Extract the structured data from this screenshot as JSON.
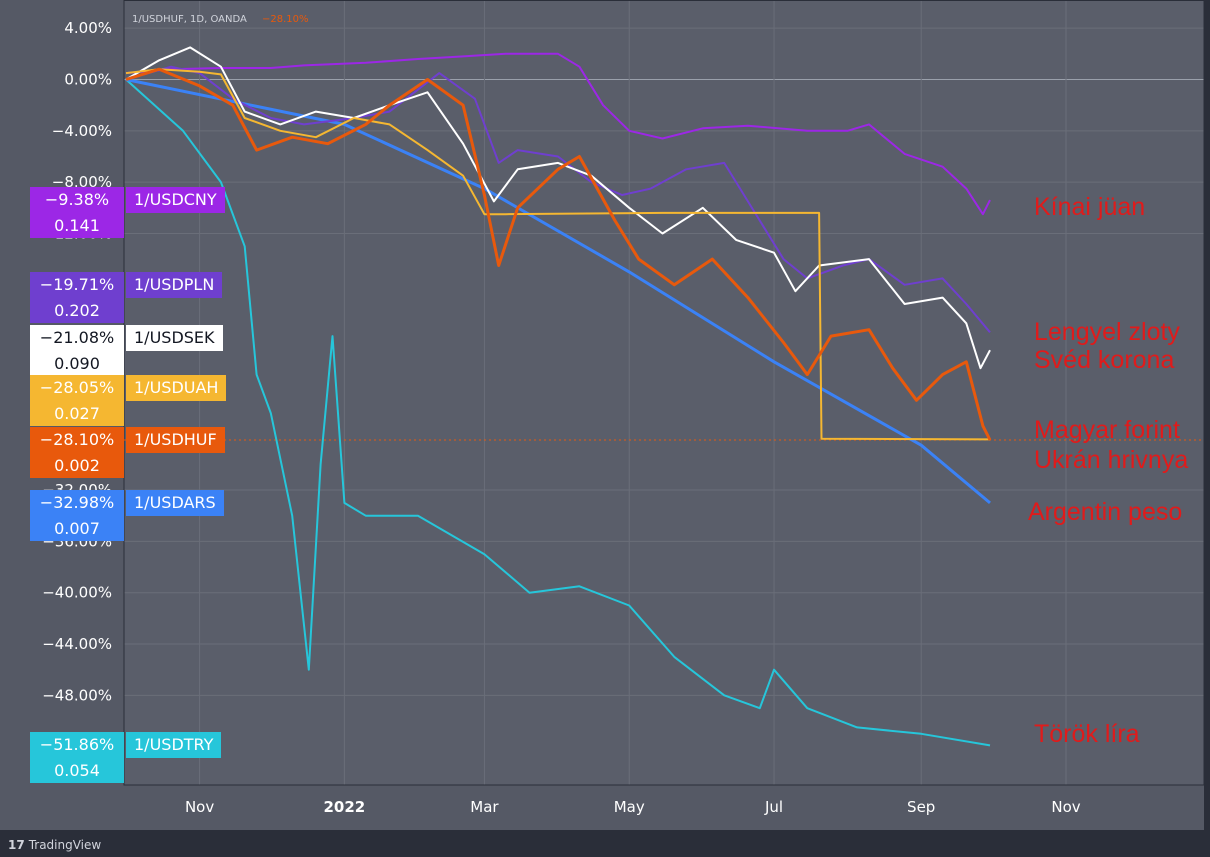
{
  "header": {
    "symbol_text": "1/USDHUF, 1D, OANDA",
    "change_text": "−28.10%"
  },
  "watermark": {
    "text": "TradingView"
  },
  "chart_data": {
    "type": "line",
    "y_unit": "percent change",
    "ylim": [
      -56,
      6
    ],
    "xlim": [
      "2021-10-01",
      "2022-11-30"
    ],
    "y_ticks": [
      "4.00%",
      "0.00%",
      "−4.00%",
      "−8.00%",
      "−12.00%",
      "−32.00%",
      "−36.00%",
      "−40.00%",
      "−44.00%",
      "−48.00%"
    ],
    "x_ticks": [
      "Nov",
      "2022",
      "Mar",
      "May",
      "Jul",
      "Sep",
      "Nov"
    ],
    "x_tick_dates": [
      "2021-11-01",
      "2022-01-01",
      "2022-03-01",
      "2022-05-01",
      "2022-07-01",
      "2022-09-01",
      "2022-11-01"
    ],
    "grid": true,
    "series": [
      {
        "name": "1/USDCNY",
        "color": "#9c27e6",
        "last_pct": "−9.38%",
        "last_value": "0.141",
        "points": [
          [
            "2021-10-01",
            0.5
          ],
          [
            "2021-10-20",
            0.8
          ],
          [
            "2021-11-10",
            0.9
          ],
          [
            "2021-12-01",
            0.9
          ],
          [
            "2021-12-15",
            1.1
          ],
          [
            "2022-01-10",
            1.3
          ],
          [
            "2022-02-01",
            1.6
          ],
          [
            "2022-02-20",
            1.8
          ],
          [
            "2022-03-10",
            2.0
          ],
          [
            "2022-04-01",
            2.0
          ],
          [
            "2022-04-10",
            1.0
          ],
          [
            "2022-04-20",
            -2.0
          ],
          [
            "2022-05-01",
            -4.0
          ],
          [
            "2022-05-15",
            -4.6
          ],
          [
            "2022-06-01",
            -3.8
          ],
          [
            "2022-06-20",
            -3.6
          ],
          [
            "2022-07-15",
            -4.0
          ],
          [
            "2022-08-01",
            -4.0
          ],
          [
            "2022-08-10",
            -3.5
          ],
          [
            "2022-08-25",
            -5.8
          ],
          [
            "2022-09-10",
            -6.8
          ],
          [
            "2022-09-20",
            -8.5
          ],
          [
            "2022-09-27",
            -10.5
          ],
          [
            "2022-09-30",
            -9.4
          ]
        ]
      },
      {
        "name": "1/USDPLN",
        "color": "#6f3fcf",
        "last_pct": "−19.71%",
        "last_value": "0.202",
        "points": [
          [
            "2021-10-01",
            0.0
          ],
          [
            "2021-10-20",
            1.0
          ],
          [
            "2021-11-01",
            0.5
          ],
          [
            "2021-11-15",
            -1.5
          ],
          [
            "2021-12-01",
            -3.0
          ],
          [
            "2021-12-15",
            -3.5
          ],
          [
            "2022-01-05",
            -3.0
          ],
          [
            "2022-01-20",
            -2.5
          ],
          [
            "2022-02-10",
            0.5
          ],
          [
            "2022-02-25",
            -1.5
          ],
          [
            "2022-03-07",
            -6.5
          ],
          [
            "2022-03-15",
            -5.5
          ],
          [
            "2022-04-01",
            -6.0
          ],
          [
            "2022-04-15",
            -8.0
          ],
          [
            "2022-04-28",
            -9.0
          ],
          [
            "2022-05-10",
            -8.5
          ],
          [
            "2022-05-25",
            -7.0
          ],
          [
            "2022-06-10",
            -6.5
          ],
          [
            "2022-06-25",
            -11.0
          ],
          [
            "2022-07-05",
            -14.0
          ],
          [
            "2022-07-15",
            -15.5
          ],
          [
            "2022-07-30",
            -14.5
          ],
          [
            "2022-08-10",
            -14.0
          ],
          [
            "2022-08-25",
            -16.0
          ],
          [
            "2022-09-10",
            -15.5
          ],
          [
            "2022-09-20",
            -17.5
          ],
          [
            "2022-09-30",
            -19.7
          ]
        ]
      },
      {
        "name": "1/USDSEK",
        "color": "#ffffff",
        "last_pct": "−21.08%",
        "last_value": "0.090",
        "points": [
          [
            "2021-10-01",
            0.0
          ],
          [
            "2021-10-15",
            1.5
          ],
          [
            "2021-10-28",
            2.5
          ],
          [
            "2021-11-10",
            1.0
          ],
          [
            "2021-11-20",
            -2.5
          ],
          [
            "2021-12-05",
            -3.5
          ],
          [
            "2021-12-20",
            -2.5
          ],
          [
            "2022-01-05",
            -3.0
          ],
          [
            "2022-01-20",
            -2.0
          ],
          [
            "2022-02-05",
            -1.0
          ],
          [
            "2022-02-20",
            -5.0
          ],
          [
            "2022-03-05",
            -9.5
          ],
          [
            "2022-03-15",
            -7.0
          ],
          [
            "2022-04-01",
            -6.5
          ],
          [
            "2022-04-15",
            -7.5
          ],
          [
            "2022-05-01",
            -10.0
          ],
          [
            "2022-05-15",
            -12.0
          ],
          [
            "2022-06-01",
            -10.0
          ],
          [
            "2022-06-15",
            -12.5
          ],
          [
            "2022-07-01",
            -13.5
          ],
          [
            "2022-07-10",
            -16.5
          ],
          [
            "2022-07-20",
            -14.5
          ],
          [
            "2022-08-10",
            -14.0
          ],
          [
            "2022-08-25",
            -17.5
          ],
          [
            "2022-09-10",
            -17.0
          ],
          [
            "2022-09-20",
            -19.0
          ],
          [
            "2022-09-26",
            -22.5
          ],
          [
            "2022-09-30",
            -21.1
          ]
        ]
      },
      {
        "name": "1/USDUAH",
        "color": "#f5b731",
        "last_pct": "−28.05%",
        "last_value": "0.027",
        "points": [
          [
            "2021-10-01",
            0.5
          ],
          [
            "2021-10-15",
            0.8
          ],
          [
            "2021-11-01",
            0.6
          ],
          [
            "2021-11-10",
            0.4
          ],
          [
            "2021-11-20",
            -3.0
          ],
          [
            "2021-12-05",
            -4.0
          ],
          [
            "2021-12-20",
            -4.5
          ],
          [
            "2022-01-05",
            -3.0
          ],
          [
            "2022-01-20",
            -3.5
          ],
          [
            "2022-02-05",
            -5.5
          ],
          [
            "2022-02-20",
            -7.5
          ],
          [
            "2022-03-01",
            -10.5
          ],
          [
            "2022-03-10",
            -10.5
          ],
          [
            "2022-05-15",
            -10.4
          ],
          [
            "2022-07-20",
            -10.4
          ],
          [
            "2022-07-21",
            -28.0
          ],
          [
            "2022-09-30",
            -28.05
          ]
        ]
      },
      {
        "name": "1/USDHUF",
        "color": "#e8590c",
        "last_pct": "−28.10%",
        "last_value": "0.002",
        "points": [
          [
            "2021-10-01",
            0.0
          ],
          [
            "2021-10-15",
            0.8
          ],
          [
            "2021-11-01",
            -0.5
          ],
          [
            "2021-11-15",
            -2.0
          ],
          [
            "2021-11-25",
            -5.5
          ],
          [
            "2021-12-10",
            -4.5
          ],
          [
            "2021-12-25",
            -5.0
          ],
          [
            "2022-01-10",
            -3.5
          ],
          [
            "2022-01-20",
            -2.0
          ],
          [
            "2022-02-05",
            0.0
          ],
          [
            "2022-02-20",
            -2.0
          ],
          [
            "2022-03-01",
            -9.0
          ],
          [
            "2022-03-07",
            -14.5
          ],
          [
            "2022-03-15",
            -10.0
          ],
          [
            "2022-04-01",
            -7.0
          ],
          [
            "2022-04-10",
            -6.0
          ],
          [
            "2022-04-25",
            -11.0
          ],
          [
            "2022-05-05",
            -14.0
          ],
          [
            "2022-05-20",
            -16.0
          ],
          [
            "2022-06-05",
            -14.0
          ],
          [
            "2022-06-20",
            -17.0
          ],
          [
            "2022-07-05",
            -20.5
          ],
          [
            "2022-07-15",
            -23.0
          ],
          [
            "2022-07-25",
            -20.0
          ],
          [
            "2022-08-10",
            -19.5
          ],
          [
            "2022-08-20",
            -22.5
          ],
          [
            "2022-08-30",
            -25.0
          ],
          [
            "2022-09-10",
            -23.0
          ],
          [
            "2022-09-20",
            -22.0
          ],
          [
            "2022-09-27",
            -27.0
          ],
          [
            "2022-09-30",
            -28.1
          ]
        ]
      },
      {
        "name": "1/USDARS",
        "color": "#3b82f6",
        "last_pct": "−32.98%",
        "last_value": "0.007",
        "points": [
          [
            "2021-10-01",
            0.0
          ],
          [
            "2022-01-01",
            -3.5
          ],
          [
            "2022-03-01",
            -8.5
          ],
          [
            "2022-05-01",
            -15.0
          ],
          [
            "2022-07-01",
            -22.0
          ],
          [
            "2022-09-01",
            -28.5
          ],
          [
            "2022-09-30",
            -33.0
          ]
        ]
      },
      {
        "name": "1/USDTRY",
        "color": "#26c6da",
        "last_pct": "−51.86%",
        "last_value": "0.054",
        "points": [
          [
            "2021-10-01",
            0.0
          ],
          [
            "2021-10-10",
            -1.5
          ],
          [
            "2021-10-25",
            -4.0
          ],
          [
            "2021-11-10",
            -8.0
          ],
          [
            "2021-11-20",
            -13.0
          ],
          [
            "2021-11-25",
            -23.0
          ],
          [
            "2021-12-01",
            -26.0
          ],
          [
            "2021-12-10",
            -34.0
          ],
          [
            "2021-12-17",
            -46.0
          ],
          [
            "2021-12-22",
            -30.0
          ],
          [
            "2021-12-27",
            -20.0
          ],
          [
            "2022-01-01",
            -33.0
          ],
          [
            "2022-01-10",
            -34.0
          ],
          [
            "2022-02-01",
            -34.0
          ],
          [
            "2022-03-01",
            -37.0
          ],
          [
            "2022-03-20",
            -40.0
          ],
          [
            "2022-04-10",
            -39.5
          ],
          [
            "2022-05-01",
            -41.0
          ],
          [
            "2022-05-20",
            -45.0
          ],
          [
            "2022-06-10",
            -48.0
          ],
          [
            "2022-06-25",
            -49.0
          ],
          [
            "2022-07-01",
            -46.0
          ],
          [
            "2022-07-15",
            -49.0
          ],
          [
            "2022-08-05",
            -50.5
          ],
          [
            "2022-09-01",
            -51.0
          ],
          [
            "2022-09-30",
            -51.9
          ]
        ]
      }
    ],
    "annotations": [
      {
        "text": "Kínai jüan",
        "series": "1/USDCNY",
        "color": "#e01b1b"
      },
      {
        "text": "Lengyel zloty",
        "series": "1/USDPLN",
        "color": "#e01b1b"
      },
      {
        "text": "Svéd korona",
        "series": "1/USDSEK",
        "color": "#e01b1b"
      },
      {
        "text": "Magyar forint",
        "series": "1/USDHUF",
        "color": "#e01b1b"
      },
      {
        "text": "Ukrán hrivnya",
        "series": "1/USDUAH",
        "color": "#e01b1b"
      },
      {
        "text": "Argentin peso",
        "series": "1/USDARS",
        "color": "#e01b1b"
      },
      {
        "text": "Török líra",
        "series": "1/USDTRY",
        "color": "#e01b1b"
      }
    ]
  }
}
